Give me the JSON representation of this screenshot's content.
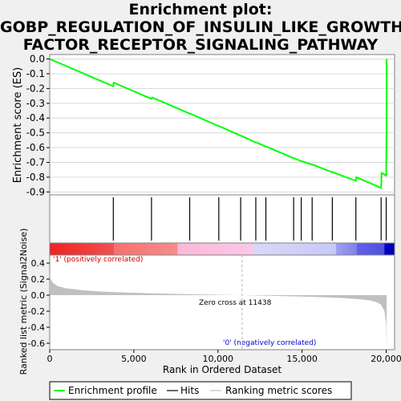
{
  "title_lines": [
    "Enrichment plot:",
    "GOBP_REGULATION_OF_INSULIN_LIKE_GROWTH_",
    "FACTOR_RECEPTOR_SIGNALING_PATHWAY"
  ],
  "colors": {
    "es_line": "#00ff00",
    "hit_line": "#000000",
    "metric_fill": "#c0c0c0",
    "pos_label": "#cc0000",
    "neg_label": "#0000cc"
  },
  "chart_data": {
    "type": "line",
    "x_label": "Rank in Ordered Dataset",
    "x_ticks": [
      0,
      5000,
      10000,
      15000,
      20000
    ],
    "x_tick_labels": [
      "0",
      "5,000",
      "10,000",
      "15,000",
      "20,000"
    ],
    "xlim": [
      0,
      20500
    ],
    "es_panel": {
      "y_label": "Enrichment score (ES)",
      "ylim": [
        -0.92,
        0.03
      ],
      "y_ticks": [
        0.0,
        -0.1,
        -0.2,
        -0.3,
        -0.4,
        -0.5,
        -0.6,
        -0.7,
        -0.8,
        -0.9
      ],
      "y_tick_labels": [
        "0.0",
        "-0.1",
        "-0.2",
        "-0.3",
        "-0.4",
        "-0.5",
        "-0.6",
        "-0.7",
        "-0.8",
        "-0.9"
      ],
      "series": [
        {
          "name": "Enrichment profile",
          "x": [
            0,
            3780,
            3800,
            6050,
            6080,
            8320,
            8350,
            10050,
            10080,
            11350,
            11380,
            12250,
            12280,
            12850,
            12880,
            14500,
            14530,
            14950,
            14980,
            15600,
            15630,
            16800,
            16830,
            18200,
            18230,
            19700,
            19730,
            20000,
            20020,
            20030
          ],
          "y": [
            0.0,
            -0.185,
            -0.16,
            -0.27,
            -0.26,
            -0.37,
            -0.37,
            -0.455,
            -0.455,
            -0.52,
            -0.52,
            -0.565,
            -0.565,
            -0.593,
            -0.593,
            -0.672,
            -0.672,
            -0.692,
            -0.692,
            -0.715,
            -0.715,
            -0.767,
            -0.767,
            -0.825,
            -0.8,
            -0.873,
            -0.77,
            -0.79,
            -0.51,
            0.0
          ]
        }
      ]
    },
    "hits": [
      3780,
      6050,
      8320,
      10050,
      11350,
      12250,
      12850,
      14500,
      14950,
      15600,
      16800,
      18200,
      19700,
      20000
    ],
    "metric_panel": {
      "y_label": "Ranked list metric (Signal2Noise)",
      "ylim": [
        -0.68,
        0.5
      ],
      "y_ticks": [
        0.4,
        0.2,
        0.0,
        -0.2,
        -0.4,
        -0.6
      ],
      "y_tick_labels": [
        "0.4",
        "0.2",
        "0.0",
        "-0.2",
        "-0.4",
        "-0.6"
      ],
      "zero_cross": 11438,
      "zero_cross_label": "Zero cross at 11438",
      "pos_label": "'1' (positively correlated)",
      "neg_label": "'0' (negatively correlated)",
      "metric_profile": {
        "x": [
          0,
          60,
          200,
          500,
          1000,
          2000,
          3000,
          4500,
          6000,
          8000,
          10000,
          11438,
          13000,
          15000,
          16500,
          17500,
          18500,
          19000,
          19400,
          19700,
          19900,
          20000,
          20030,
          20030,
          0
        ],
        "y": [
          0.27,
          0.2,
          0.15,
          0.11,
          0.085,
          0.06,
          0.045,
          0.032,
          0.023,
          0.013,
          0.005,
          0.0,
          -0.008,
          -0.018,
          -0.027,
          -0.037,
          -0.052,
          -0.065,
          -0.085,
          -0.12,
          -0.2,
          -0.35,
          -0.66,
          0.0,
          0.0
        ]
      }
    },
    "legend": {
      "placement": "bottom",
      "entries": [
        "Enrichment profile",
        "Hits",
        "Ranking metric scores"
      ]
    }
  }
}
